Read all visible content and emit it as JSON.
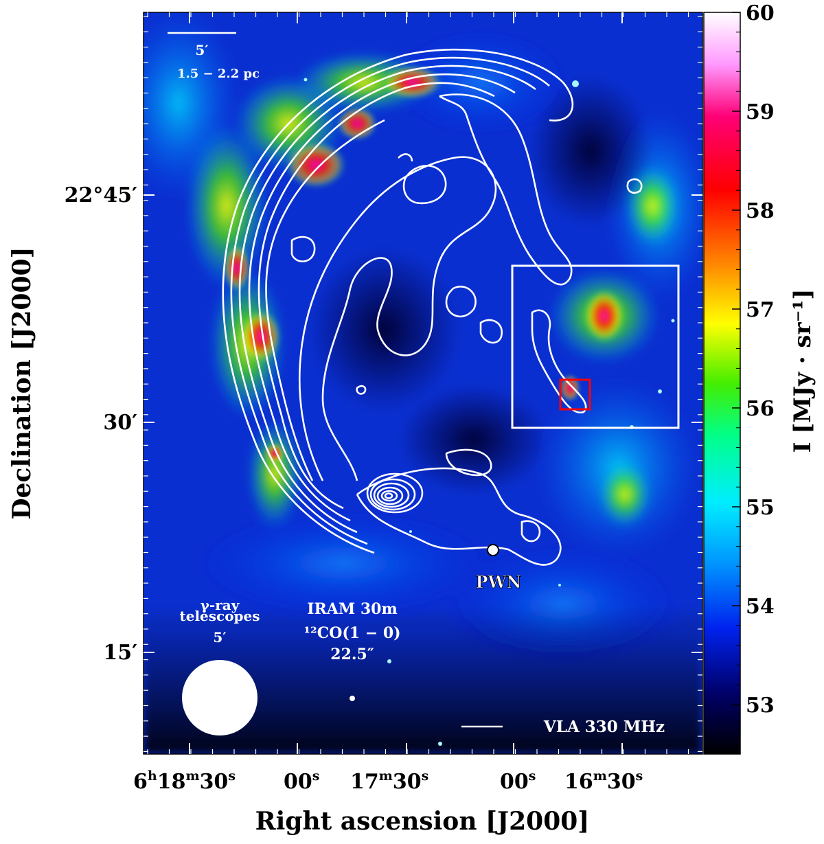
{
  "chart_data": {
    "type": "heatmap",
    "title": "",
    "xlabel": "Right ascension [J2000]",
    "ylabel": "Declination [J2000]",
    "x_ticks": [
      {
        "label_main": "6",
        "sup1": "h",
        "label2": "18",
        "sup2": "m",
        "label3": "30",
        "sup3": "s"
      },
      {
        "label_main": "00",
        "sup1": "s"
      },
      {
        "label_main": "17",
        "sup1": "m",
        "label2": "30",
        "sup2": "s"
      },
      {
        "label_main": "00",
        "sup1": "s"
      },
      {
        "label_main": "16",
        "sup1": "m",
        "label2": "30",
        "sup2": "s"
      }
    ],
    "y_ticks": [
      {
        "label": "22°45′"
      },
      {
        "label": "30′"
      },
      {
        "label": "15′"
      }
    ],
    "colorbar": {
      "label": "I [MJy · sr⁻¹]",
      "ticks": [
        "60",
        "59",
        "58",
        "57",
        "56",
        "55",
        "54",
        "53"
      ],
      "range": [
        52.5,
        60
      ],
      "colormap": [
        "#ffffff",
        "#ff66ff",
        "#ff0055",
        "#ff0000",
        "#ff8800",
        "#ffff00",
        "#33ee00",
        "#00ff88",
        "#00eeff",
        "#0099ff",
        "#0022ff",
        "#000066",
        "#000000"
      ]
    },
    "contours": {
      "name": "VLA 330 MHz",
      "color": "#ffffff"
    },
    "annotations": {
      "scalebar_angle": "5′",
      "scalebar_distance": "1.5 − 2.2 pc",
      "pwn_label": "PWN",
      "gamma_beam_line1": "γ-ray",
      "gamma_beam_line2": "telescopes",
      "gamma_beam_line3": "5′",
      "iram_line1": "IRAM 30m",
      "iram_line2": "¹²CO(1 − 0)",
      "iram_line3": "22.5″"
    },
    "regions": [
      {
        "name": "zoom-box",
        "color": "#ffffff"
      },
      {
        "name": "inner-box",
        "color": "#ff0000"
      }
    ]
  }
}
